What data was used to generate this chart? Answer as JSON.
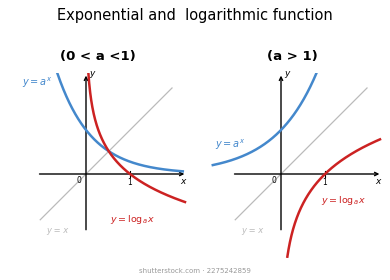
{
  "title": "Exponential and  logarithmic function",
  "title_fontsize": 10.5,
  "subtitle_left": "(0 < a <1)",
  "subtitle_right": "(a > 1)",
  "subtitle_fontsize": 9.5,
  "blue_color": "#4488CC",
  "red_color": "#CC2222",
  "gray_color": "#BBBBBB",
  "background_color": "#FFFFFF",
  "watermark": "shutterstock.com · 2275242859"
}
